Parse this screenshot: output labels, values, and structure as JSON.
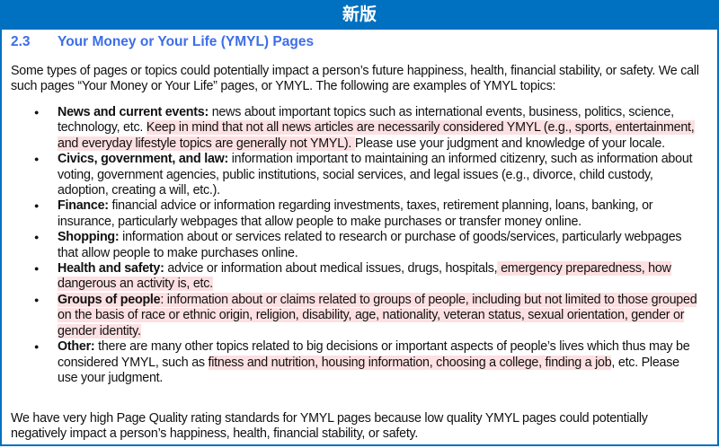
{
  "banner": {
    "title": "新版"
  },
  "section": {
    "number": "2.3",
    "title": "Your Money or Your Life (YMYL) Pages"
  },
  "intro": "Some types of pages or topics could potentially impact a person’s future happiness, health, financial stability, or safety. We call such pages “Your Money or Your Life” pages, or YMYL.  The following are examples of YMYL topics:",
  "colors": {
    "banner": "#0070c0",
    "heading": "#3d6ee8",
    "highlight": "#fde0e2"
  },
  "items": [
    {
      "segments": [
        {
          "text": "News and current events:",
          "bold": true,
          "hl": false
        },
        {
          "text": " news about important topics such as international events, business, politics, science, technology, etc. ",
          "bold": false,
          "hl": false
        },
        {
          "text": " Keep in mind that not all news articles are necessarily considered YMYL (e.g., sports, entertainment, and everyday lifestyle topics are generally not YMYL). ",
          "bold": false,
          "hl": true
        },
        {
          "text": " Please use your judgment and knowledge of your locale.",
          "bold": false,
          "hl": false
        }
      ]
    },
    {
      "segments": [
        {
          "text": "Civics, government, and law:",
          "bold": true,
          "hl": false
        },
        {
          "text": " information important to maintaining an informed citizenry, such as information about voting, government agencies, public institutions, social services, and legal issues (e.g., divorce, child custody, adoption, creating a will, etc.).",
          "bold": false,
          "hl": false
        }
      ]
    },
    {
      "segments": [
        {
          "text": "Finance:",
          "bold": true,
          "hl": false
        },
        {
          "text": " financial advice or information regarding investments, taxes, retirement planning, loans, banking, or insurance, particularly webpages that allow people to make purchases or transfer money online.",
          "bold": false,
          "hl": false
        }
      ]
    },
    {
      "segments": [
        {
          "text": "Shopping:",
          "bold": true,
          "hl": false
        },
        {
          "text": " information about or services related to research or purchase of goods/services, particularly webpages that allow people to make purchases online.",
          "bold": false,
          "hl": false
        }
      ]
    },
    {
      "segments": [
        {
          "text": "Health and safety:",
          "bold": true,
          "hl": false
        },
        {
          "text": " advice or information about medical issues, drugs, hospitals,",
          "bold": false,
          "hl": false
        },
        {
          "text": " emergency preparedness, how dangerous an activity is, etc. ",
          "bold": false,
          "hl": true
        }
      ]
    },
    {
      "segments": [
        {
          "text": "Groups of people",
          "bold": true,
          "hl": true
        },
        {
          "text": ": information about or claims related to groups of people, including but not limited to those grouped on the basis of race or ethnic origin, religion, disability, age, nationality, veteran status, sexual orientation, gender or gender identity.",
          "bold": false,
          "hl": true
        }
      ]
    },
    {
      "segments": [
        {
          "text": "Other:",
          "bold": true,
          "hl": false
        },
        {
          "text": " there are many other topics related to big decisions or important aspects of people’s lives which thus may be considered YMYL, such as ",
          "bold": false,
          "hl": false
        },
        {
          "text": "fitness and nutrition, housing information, choosing a college, finding a job",
          "bold": false,
          "hl": true
        },
        {
          "text": ", etc. Please use your judgment.",
          "bold": false,
          "hl": false
        }
      ]
    }
  ],
  "outro": "We have very high Page Quality rating standards for YMYL pages because low quality YMYL pages could potentially negatively impact a person’s happiness, health, financial stability, or safety."
}
